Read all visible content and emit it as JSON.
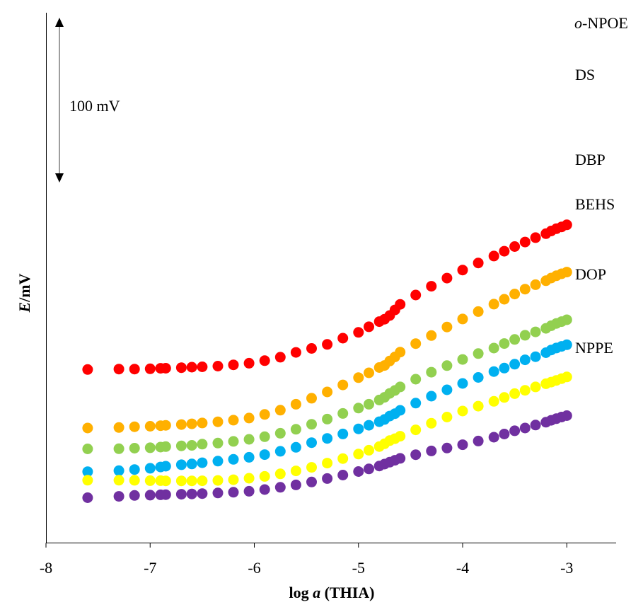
{
  "chart_data": {
    "type": "scatter",
    "xlabel_prefix": "log ",
    "xlabel_var": "a",
    "xlabel_suffix": " (THIA)",
    "ylabel_var": "E",
    "ylabel_unit": "/mV",
    "xlim": [
      -8,
      -2.5
    ],
    "x_ticks": [
      -8,
      -7,
      -6,
      -5,
      -4,
      -3
    ],
    "x_tick_labels": [
      "-8",
      "-7",
      "-6",
      "-5",
      "-4",
      "-3"
    ],
    "grid": false,
    "scale_bar": {
      "label": "100 mV",
      "value_mV": 100
    },
    "x": [
      -7.6,
      -7.3,
      -7.15,
      -7.0,
      -6.9,
      -6.85,
      -6.7,
      -6.6,
      -6.5,
      -6.35,
      -6.2,
      -6.05,
      -5.9,
      -5.75,
      -5.6,
      -5.45,
      -5.3,
      -5.15,
      -5.0,
      -4.9,
      -4.8,
      -4.75,
      -4.7,
      -4.65,
      -4.6,
      -4.45,
      -4.3,
      -4.15,
      -4.0,
      -3.85,
      -3.7,
      -3.6,
      -3.5,
      -3.4,
      -3.3,
      -3.2,
      -3.15,
      -3.1,
      -3.05,
      -3.0
    ],
    "series": [
      {
        "name": "o-NPOE",
        "name_italic": "o",
        "name_rest": "-NPOE",
        "color": "#ff0000",
        "values": [
          226.3,
          227.0,
          227.0,
          227.5,
          228.2,
          228.3,
          229.2,
          230.0,
          230.6,
          231.7,
          233.7,
          236.2,
          240.2,
          245.7,
          253.2,
          259.4,
          265.8,
          275.6,
          284.7,
          293.4,
          301.5,
          305.3,
          311.1,
          319.9,
          328.7,
          343.3,
          357.1,
          369.9,
          382.6,
          393.7,
          404.5,
          412.1,
          419.4,
          426.5,
          433.4,
          439.7,
          443.9,
          447.4,
          450.3,
          453.5
        ]
      },
      {
        "name": "DS",
        "color": "#ffb000",
        "values": [
          134.5,
          135.2,
          136.4,
          137.2,
          138.1,
          138.7,
          139.9,
          141.0,
          142.3,
          144.2,
          146.8,
          150.1,
          155.8,
          162.4,
          171.8,
          181.2,
          191.1,
          202.1,
          213.6,
          221.1,
          229.5,
          232.7,
          239.7,
          246.1,
          253.7,
          267.0,
          279.7,
          293.1,
          305.7,
          317.3,
          329.0,
          336.7,
          344.9,
          352.6,
          359.5,
          365.8,
          370.0,
          373.5,
          376.7,
          379.3
        ]
      },
      {
        "name": "DBP",
        "color": "#92d050",
        "values": [
          101.7,
          101.9,
          102.8,
          103.5,
          104.5,
          105.2,
          106.4,
          107.2,
          109.1,
          110.8,
          113.5,
          116.7,
          120.8,
          126.2,
          132.5,
          140.3,
          148.4,
          157.3,
          165.8,
          171.8,
          178.5,
          182.7,
          188.8,
          193.4,
          199.0,
          211.1,
          222.1,
          232.4,
          242.1,
          251.3,
          260.0,
          267.1,
          273.6,
          280.1,
          285.5,
          291.0,
          295.1,
          298.7,
          301.5,
          304.4
        ]
      },
      {
        "name": "BEHS",
        "color": "#00b0f0",
        "values": [
          65.9,
          67.5,
          69.2,
          71.2,
          73.2,
          74.5,
          76.8,
          78.0,
          79.9,
          82.5,
          85.2,
          88.5,
          92.7,
          97.9,
          104.1,
          111.4,
          118.1,
          125.1,
          133.1,
          138.8,
          144.3,
          147.9,
          153.2,
          157.0,
          162.2,
          173.6,
          184.5,
          194.5,
          204.4,
          213.9,
          223.1,
          228.6,
          234.7,
          241.5,
          246.4,
          252.8,
          257.0,
          260.1,
          262.7,
          265.2
        ]
      },
      {
        "name": "DOP",
        "color": "#ffff00",
        "values": [
          52.5,
          52.5,
          52.3,
          51.8,
          51.8,
          51.4,
          51.4,
          51.4,
          51.6,
          52.1,
          53.2,
          55.6,
          58.5,
          62.4,
          67.1,
          72.7,
          79.3,
          86.4,
          93.6,
          99.6,
          105.3,
          109.7,
          114.7,
          117.7,
          121.5,
          131.6,
          141.9,
          151.7,
          161.1,
          168.8,
          176.3,
          182.5,
          188.4,
          193.7,
          199.0,
          204.0,
          206.5,
          209.2,
          212.0,
          214.7
        ]
      },
      {
        "name": "NPPE",
        "color": "#7030a0",
        "values": [
          25.0,
          27.1,
          28.6,
          29.0,
          29.6,
          29.8,
          30.4,
          30.9,
          31.4,
          32.4,
          33.6,
          35.1,
          37.8,
          41.3,
          45.1,
          49.7,
          55.1,
          60.6,
          66.1,
          70.2,
          74.8,
          77.8,
          80.8,
          83.8,
          86.8,
          92.6,
          98.5,
          103.0,
          108.2,
          114.0,
          120.0,
          125.0,
          130.1,
          134.5,
          139.1,
          143.6,
          146.6,
          149.1,
          151.7,
          153.9
        ]
      }
    ]
  }
}
